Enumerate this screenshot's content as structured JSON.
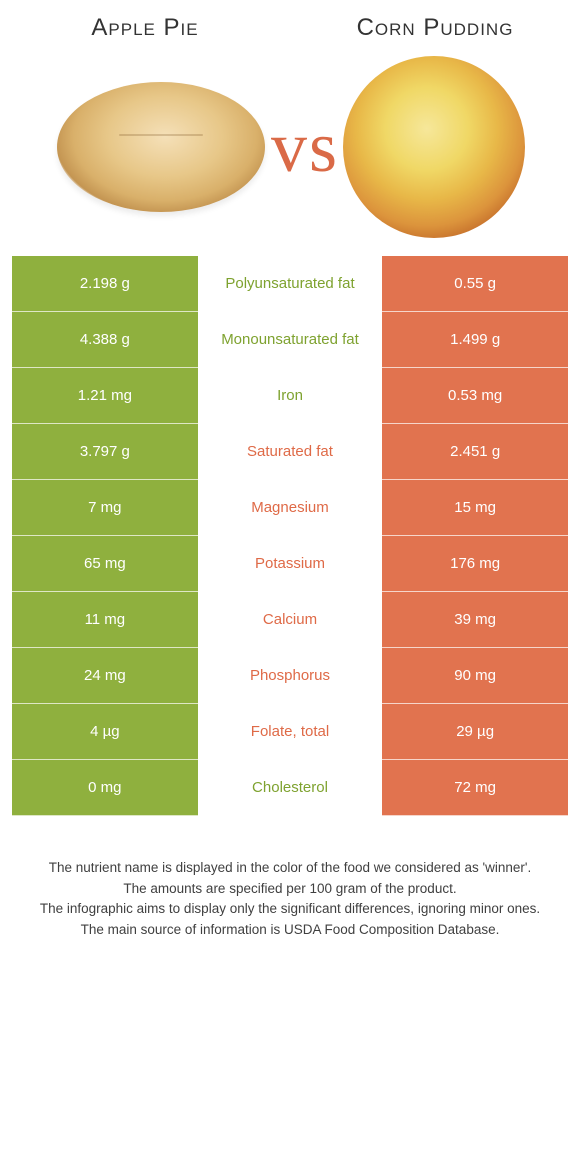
{
  "header": {
    "left": "Apple Pie",
    "right": "Corn Pudding",
    "vs": "vs"
  },
  "colors": {
    "left_bg": "#8fb03e",
    "right_bg": "#e1734f",
    "left_txt": "#7ea22f",
    "right_txt": "#df6a47"
  },
  "rows": [
    {
      "left": "2.198 g",
      "label": "Polyunsaturated fat",
      "right": "0.55 g",
      "winner": "left"
    },
    {
      "left": "4.388 g",
      "label": "Monounsaturated fat",
      "right": "1.499 g",
      "winner": "left"
    },
    {
      "left": "1.21 mg",
      "label": "Iron",
      "right": "0.53 mg",
      "winner": "left"
    },
    {
      "left": "3.797 g",
      "label": "Saturated fat",
      "right": "2.451 g",
      "winner": "right"
    },
    {
      "left": "7 mg",
      "label": "Magnesium",
      "right": "15 mg",
      "winner": "right"
    },
    {
      "left": "65 mg",
      "label": "Potassium",
      "right": "176 mg",
      "winner": "right"
    },
    {
      "left": "11 mg",
      "label": "Calcium",
      "right": "39 mg",
      "winner": "right"
    },
    {
      "left": "24 mg",
      "label": "Phosphorus",
      "right": "90 mg",
      "winner": "right"
    },
    {
      "left": "4 µg",
      "label": "Folate, total",
      "right": "29 µg",
      "winner": "right"
    },
    {
      "left": "0 mg",
      "label": "Cholesterol",
      "right": "72 mg",
      "winner": "left"
    }
  ],
  "footer": {
    "l1": "The nutrient name is displayed in the color of the food we considered as 'winner'.",
    "l2": "The amounts are specified per 100 gram of the product.",
    "l3": "The infographic aims to display only the significant differences, ignoring minor ones.",
    "l4": "The main source of information is USDA Food Composition Database."
  }
}
